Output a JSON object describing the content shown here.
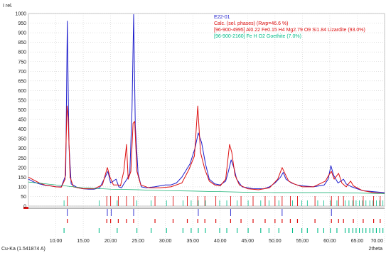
{
  "chart_data": {
    "type": "line",
    "ylabel": "I rel.",
    "xlabel": "2theta",
    "source_label": "Cu-Ka (1.541874 A)",
    "xlim": [
      5,
      70
    ],
    "ylim": [
      0,
      1000
    ],
    "grid": true,
    "legend_position": "top-right",
    "x_ticks": [
      "10.00",
      "15.00",
      "20.00",
      "25.00",
      "30.00",
      "35.00",
      "40.00",
      "45.00",
      "50.00",
      "55.00",
      "60.00",
      "65.00",
      "70.00"
    ],
    "y_ticks": [
      "0",
      "50",
      "100",
      "150",
      "200",
      "250",
      "300",
      "350",
      "400",
      "450",
      "500",
      "550",
      "600",
      "650",
      "700",
      "750",
      "800",
      "850",
      "900",
      "950",
      "1000"
    ],
    "x_tick_values": [
      10,
      15,
      20,
      25,
      30,
      35,
      40,
      45,
      50,
      55,
      60,
      65,
      70
    ],
    "y_tick_values": [
      0,
      50,
      100,
      150,
      200,
      250,
      300,
      350,
      400,
      450,
      500,
      550,
      600,
      650,
      700,
      750,
      800,
      850,
      900,
      950,
      1000
    ],
    "series": [
      {
        "name": "E22-01",
        "color": "#1f1fcc",
        "points": [
          [
            5,
            140
          ],
          [
            6,
            125
          ],
          [
            7,
            115
          ],
          [
            8,
            108
          ],
          [
            9,
            105
          ],
          [
            10,
            100
          ],
          [
            11,
            100
          ],
          [
            11.8,
            160
          ],
          [
            12.1,
            960
          ],
          [
            12.4,
            320
          ],
          [
            12.8,
            115
          ],
          [
            14,
            95
          ],
          [
            15,
            90
          ],
          [
            16,
            88
          ],
          [
            17,
            88
          ],
          [
            18,
            95
          ],
          [
            19,
            150
          ],
          [
            19.5,
            180
          ],
          [
            20,
            120
          ],
          [
            21,
            140
          ],
          [
            21.5,
            100
          ],
          [
            22,
            95
          ],
          [
            22.5,
            120
          ],
          [
            23,
            140
          ],
          [
            23.5,
            170
          ],
          [
            23.9,
            500
          ],
          [
            24.2,
            995
          ],
          [
            24.5,
            420
          ],
          [
            25,
            170
          ],
          [
            25.6,
            100
          ],
          [
            26.5,
            95
          ],
          [
            28,
            100
          ],
          [
            30,
            110
          ],
          [
            31,
            110
          ],
          [
            32,
            120
          ],
          [
            33,
            150
          ],
          [
            34.5,
            220
          ],
          [
            35.4,
            300
          ],
          [
            36,
            380
          ],
          [
            36.6,
            330
          ],
          [
            37.3,
            220
          ],
          [
            38,
            140
          ],
          [
            39,
            115
          ],
          [
            40,
            110
          ],
          [
            41,
            130
          ],
          [
            41.5,
            180
          ],
          [
            42,
            240
          ],
          [
            42.5,
            200
          ],
          [
            43,
            140
          ],
          [
            44,
            100
          ],
          [
            45,
            95
          ],
          [
            46,
            90
          ],
          [
            48,
            90
          ],
          [
            49,
            100
          ],
          [
            50,
            120
          ],
          [
            51,
            150
          ],
          [
            51.5,
            175
          ],
          [
            52,
            140
          ],
          [
            53,
            120
          ],
          [
            54,
            110
          ],
          [
            55,
            105
          ],
          [
            57,
            100
          ],
          [
            59,
            110
          ],
          [
            59.7,
            140
          ],
          [
            60.2,
            210
          ],
          [
            60.7,
            160
          ],
          [
            61.5,
            120
          ],
          [
            62.5,
            140
          ],
          [
            63,
            115
          ],
          [
            64,
            100
          ],
          [
            65,
            90
          ],
          [
            66,
            80
          ],
          [
            68,
            75
          ],
          [
            70,
            70
          ]
        ]
      },
      {
        "name": "Calc. (sel. phases) (Rwp=46.6 %)",
        "color": "#dd1010",
        "points": [
          [
            5,
            150
          ],
          [
            6,
            135
          ],
          [
            7,
            120
          ],
          [
            8,
            110
          ],
          [
            9,
            105
          ],
          [
            10,
            100
          ],
          [
            11,
            98
          ],
          [
            11.7,
            140
          ],
          [
            12.05,
            520
          ],
          [
            12.25,
            460
          ],
          [
            12.6,
            150
          ],
          [
            13.2,
            100
          ],
          [
            15,
            90
          ],
          [
            17,
            90
          ],
          [
            18.5,
            110
          ],
          [
            19.4,
            200
          ],
          [
            19.9,
            150
          ],
          [
            20.5,
            110
          ],
          [
            21.3,
            110
          ],
          [
            21.8,
            105
          ],
          [
            22.4,
            180
          ],
          [
            22.9,
            320
          ],
          [
            23.2,
            140
          ],
          [
            23.7,
            180
          ],
          [
            24.1,
            430
          ],
          [
            24.4,
            440
          ],
          [
            24.8,
            180
          ],
          [
            25.5,
            110
          ],
          [
            27,
            95
          ],
          [
            29,
            95
          ],
          [
            31,
            100
          ],
          [
            33,
            120
          ],
          [
            34.3,
            190
          ],
          [
            35.3,
            260
          ],
          [
            35.9,
            520
          ],
          [
            36.4,
            280
          ],
          [
            37.2,
            190
          ],
          [
            38,
            130
          ],
          [
            39,
            110
          ],
          [
            40,
            105
          ],
          [
            41,
            140
          ],
          [
            41.7,
            320
          ],
          [
            42.1,
            280
          ],
          [
            42.7,
            160
          ],
          [
            43.5,
            110
          ],
          [
            45,
            90
          ],
          [
            47,
            85
          ],
          [
            49,
            95
          ],
          [
            50.5,
            140
          ],
          [
            51.3,
            200
          ],
          [
            51.8,
            170
          ],
          [
            52.5,
            130
          ],
          [
            53.5,
            115
          ],
          [
            55,
            100
          ],
          [
            57,
            100
          ],
          [
            59.2,
            130
          ],
          [
            59.8,
            160
          ],
          [
            60.3,
            180
          ],
          [
            60.8,
            140
          ],
          [
            61.6,
            170
          ],
          [
            62.2,
            120
          ],
          [
            63,
            100
          ],
          [
            63.8,
            130
          ],
          [
            64.3,
            105
          ],
          [
            66,
            80
          ],
          [
            68,
            70
          ],
          [
            70,
            65
          ]
        ]
      },
      {
        "name": "Background",
        "color": "#00aa66",
        "points": [
          [
            5,
            125
          ],
          [
            10,
            110
          ],
          [
            15,
            95
          ],
          [
            20,
            88
          ],
          [
            25,
            85
          ],
          [
            30,
            80
          ],
          [
            35,
            78
          ],
          [
            40,
            75
          ],
          [
            45,
            72
          ],
          [
            50,
            70
          ],
          [
            55,
            70
          ],
          [
            60,
            70
          ],
          [
            65,
            68
          ],
          [
            70,
            65
          ]
        ]
      }
    ],
    "legend": [
      {
        "label": "E22-01",
        "color": "#1f1fcc"
      },
      {
        "label": "Calc. (sel. phases) (Rwp=46.6 %)",
        "color": "#dd1010"
      },
      {
        "label": "[96-900-4995] Al0.22 Fe0.15 H4 Mg2.79 O9 Si1.84 Lizardite (93.0%)",
        "color": "#dd1010"
      },
      {
        "label": "[96-900-2160] Fe H O2 Goethite (7.0%)",
        "color": "#00bb88"
      }
    ],
    "phase_markers": {
      "lizardite": {
        "color": "#dd1010",
        "positions": [
          12.1,
          19.3,
          20.0,
          21.4,
          22.9,
          24.2,
          28.1,
          31.4,
          34.0,
          35.9,
          37.2,
          39.2,
          41.9,
          43.8,
          46.0,
          48.2,
          50.0,
          51.3,
          52.8,
          54.1,
          57.3,
          60.3,
          61.6,
          62.5,
          64.3,
          66.1,
          68.0,
          69.2
        ]
      },
      "goethite": {
        "color": "#00bb88",
        "positions": [
          11.5,
          17.9,
          21.2,
          24.8,
          27.4,
          30.2,
          33.2,
          34.7,
          36.0,
          37.3,
          39.9,
          41.2,
          43.1,
          45.1,
          47.4,
          48.9,
          50.7,
          53.2,
          54.9,
          55.9,
          57.8,
          58.9,
          60.1,
          61.3,
          62.8,
          63.5,
          64.2,
          64.8,
          65.4,
          66.0,
          66.6,
          67.3,
          67.9,
          68.5,
          69.1,
          69.7
        ]
      }
    }
  }
}
